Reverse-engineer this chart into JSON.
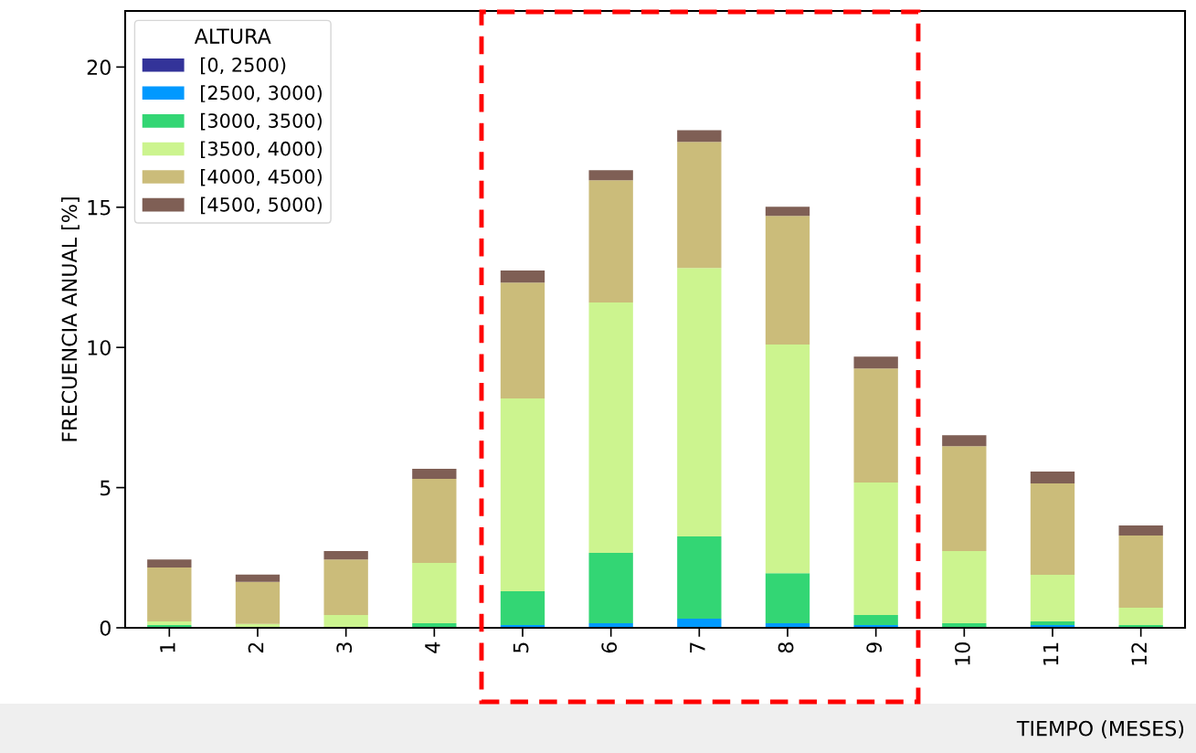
{
  "chart_data": {
    "type": "bar",
    "stacked": true,
    "xlabel": "TIEMPO (MESES)",
    "ylabel": "FRECUENCIA ANUAL [%]",
    "legend_title": "ALTURA",
    "legend": "top left",
    "categories": [
      "1",
      "2",
      "3",
      "4",
      "5",
      "6",
      "7",
      "8",
      "9",
      "10",
      "11",
      "12"
    ],
    "series": [
      {
        "name": "[0, 2500)",
        "color": "#333399",
        "values": [
          0,
          0,
          0,
          0,
          0,
          0,
          0,
          0,
          0,
          0,
          0,
          0
        ]
      },
      {
        "name": "[2500, 3000)",
        "color": "#0099ff",
        "values": [
          0,
          0,
          0,
          0,
          0.1,
          0.16,
          0.33,
          0.16,
          0.1,
          0,
          0.1,
          0
        ]
      },
      {
        "name": "[3000, 3500)",
        "color": "#33d674",
        "values": [
          0.1,
          null,
          0.03,
          0.16,
          1.2,
          2.51,
          2.93,
          1.79,
          0.36,
          0.16,
          0.13,
          0.1
        ]
      },
      {
        "name": "[3500, 4000)",
        "color": "#ccf48f",
        "values": [
          0.13,
          0.14,
          0.43,
          2.15,
          6.88,
          8.93,
          9.57,
          8.15,
          4.72,
          2.58,
          1.66,
          0.62
        ]
      },
      {
        "name": "[4000, 4500)",
        "color": "#cbbc7a",
        "values": [
          1.92,
          1.5,
          1.98,
          3.0,
          4.13,
          4.36,
          4.5,
          4.59,
          4.07,
          3.74,
          3.26,
          2.57
        ]
      },
      {
        "name": "[4500, 5000)",
        "color": "#7f5f55",
        "values": [
          0.29,
          0.26,
          0.3,
          0.36,
          0.43,
          0.36,
          0.42,
          0.33,
          0.42,
          0.39,
          0.42,
          0.36
        ]
      }
    ],
    "ylim": [
      0,
      22
    ],
    "yticks": [
      0,
      5,
      10,
      15,
      20
    ],
    "grid": false
  }
}
